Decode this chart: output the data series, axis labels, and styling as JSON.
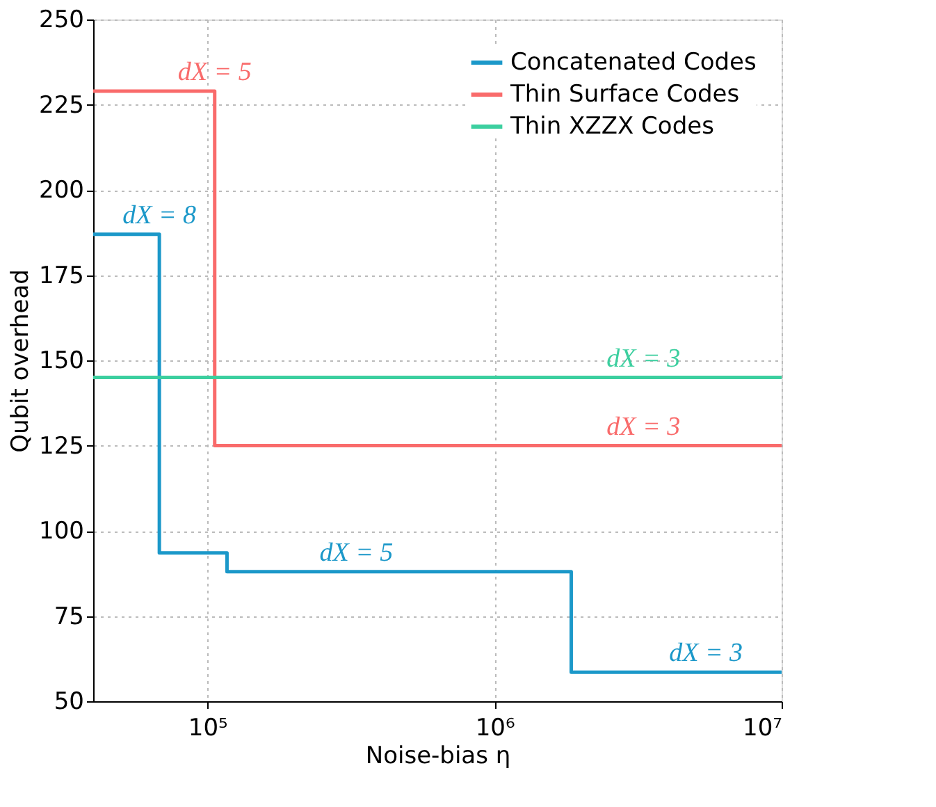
{
  "chart_data": {
    "type": "step",
    "xlabel": "Noise-bias η",
    "ylabel": "Qubit overhead",
    "log": "x",
    "xlim": [
      40000,
      10000000
    ],
    "xticks": [
      {
        "value": 100000,
        "label": "10⁵"
      },
      {
        "value": 1000000,
        "label": "10⁶"
      },
      {
        "value": 10000000,
        "label": "10⁷"
      }
    ],
    "ylim": [
      50,
      250
    ],
    "yticks": [
      50,
      75,
      100,
      125,
      150,
      175,
      200,
      225,
      250
    ],
    "grid": true,
    "legend": "top right",
    "line_style": "solid",
    "marker": "none",
    "series": [
      {
        "name": "Concatenated Codes",
        "color": "#1b98c9",
        "x": [
          40000,
          68000,
          117000,
          1850000,
          10000000
        ],
        "values": [
          187,
          93.5,
          88,
          58.5,
          58.5
        ]
      },
      {
        "name": "Thin Surface Codes",
        "color": "#f96b6b",
        "x": [
          40000,
          106000,
          10000000
        ],
        "values": [
          229,
          125,
          125
        ]
      },
      {
        "name": "Thin XZZX Codes",
        "color": "#3ccf9f",
        "x": [
          40000,
          10000000
        ],
        "values": [
          145,
          145
        ]
      }
    ],
    "annotations": [
      {
        "text": "dX = 5",
        "x": 106000,
        "y": 229
      },
      {
        "text": "dX = 8",
        "x": 68000,
        "y": 187
      },
      {
        "text": "dX = 3",
        "x": 3300000,
        "y": 145
      },
      {
        "text": "dX = 3",
        "x": 3300000,
        "y": 125
      },
      {
        "text": "dX = 5",
        "x": 330000,
        "y": 88
      },
      {
        "text": "dX = 3",
        "x": 5450000,
        "y": 58.5
      }
    ]
  }
}
